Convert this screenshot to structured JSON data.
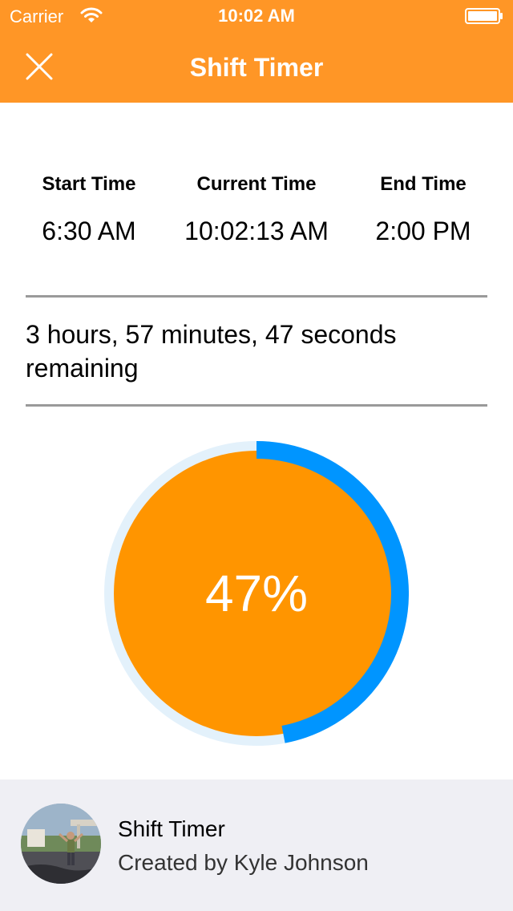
{
  "status_bar": {
    "carrier": "Carrier",
    "time": "10:02 AM"
  },
  "nav": {
    "title": "Shift Timer",
    "close_icon": "close-icon"
  },
  "times": {
    "start_label": "Start Time",
    "start_value": "6:30 AM",
    "current_label": "Current Time",
    "current_value": "10:02:13 AM",
    "end_label": "End Time",
    "end_value": "2:00 PM"
  },
  "remaining": {
    "line1": "3 hours, 57 minutes, 47 seconds",
    "line2": "remaining"
  },
  "progress": {
    "label": "47%",
    "fraction": 0.47
  },
  "footer": {
    "title": "Shift Timer",
    "subtitle": "Created by Kyle Johnson"
  },
  "colors": {
    "header": "#FF9626",
    "circle_fill": "#FF9500",
    "ring_progress": "#0095FF",
    "ring_track": "#E3F1FB",
    "divider": "#9A9A9A",
    "footer_bg": "#EFEFF4"
  }
}
